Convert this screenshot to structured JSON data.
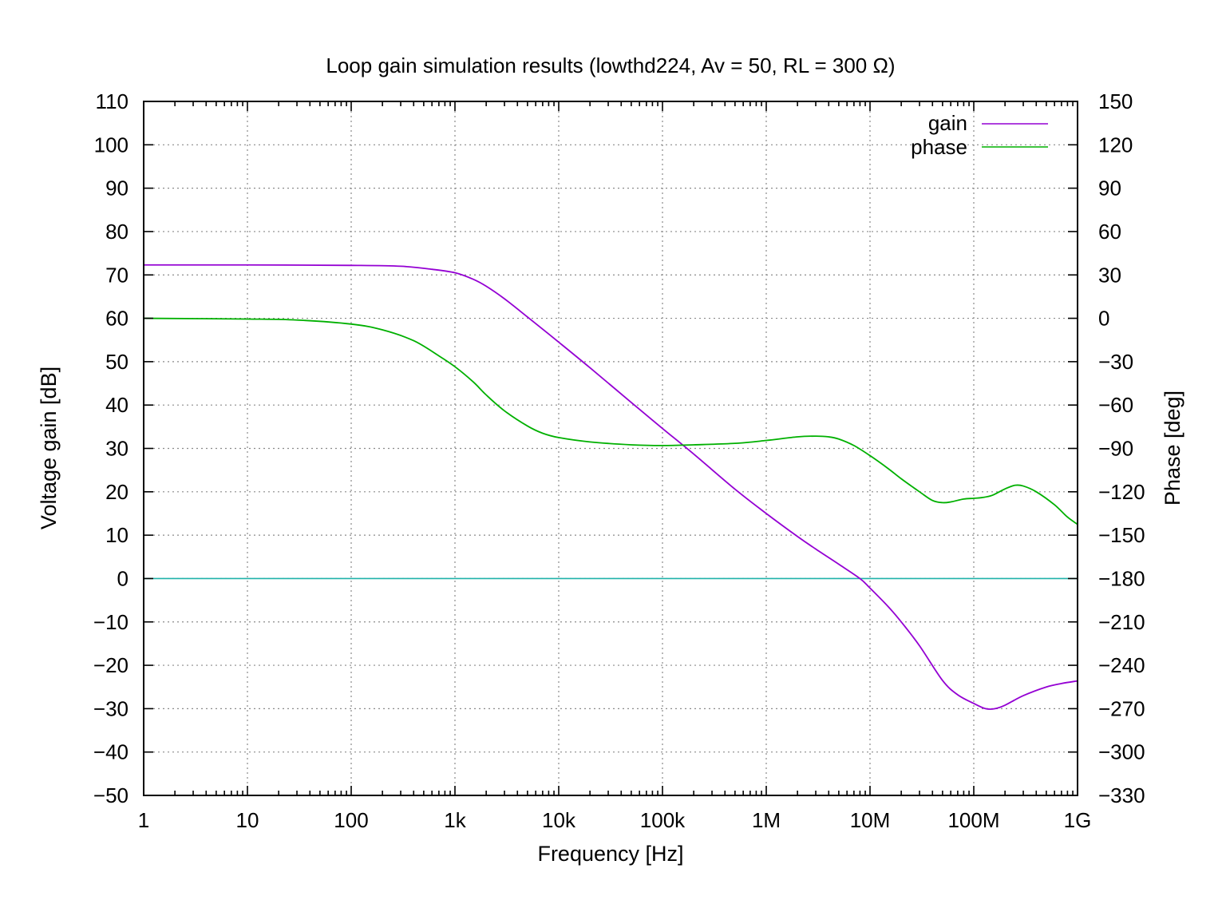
{
  "chart_data": {
    "type": "line",
    "title": "Loop gain simulation results (lowthd224, Av = 50, RL = 300 Ω)",
    "xlabel": "Frequency [Hz]",
    "ylabel": "Voltage gain [dB]",
    "y2label": "Phase [deg]",
    "xscale": "log",
    "xlim": [
      1,
      1000000000
    ],
    "ylim": [
      -50,
      110
    ],
    "y2lim": [
      -330,
      150
    ],
    "grid": true,
    "legend_position": "top-right",
    "x_tick_labels": [
      "1",
      "10",
      "100",
      "1k",
      "10k",
      "100k",
      "1M",
      "10M",
      "100M",
      "1G"
    ],
    "y_tick_labels": [
      "110",
      "100",
      "90",
      "80",
      "70",
      "60",
      "50",
      "40",
      "30",
      "20",
      "10",
      "0",
      "−10",
      "−20",
      "−30",
      "−40",
      "−50"
    ],
    "y2_tick_labels": [
      "150",
      "120",
      "90",
      "60",
      "30",
      "0",
      "−30",
      "−60",
      "−90",
      "−120",
      "−150",
      "−180",
      "−210",
      "−240",
      "−270",
      "−300",
      "−330"
    ],
    "reference_line": {
      "y": 0,
      "color": "#20b2aa"
    },
    "series": [
      {
        "name": "gain",
        "axis": "y",
        "color": "#9400d3",
        "x": [
          1,
          10,
          100,
          300,
          600,
          1000,
          1500,
          2000,
          3000,
          5000,
          10000,
          20000,
          50000,
          100000,
          200000,
          500000,
          1000000,
          2000000,
          3000000,
          5000000,
          8000000,
          10000000,
          15000000,
          20000000,
          30000000,
          50000000,
          70000000,
          100000000,
          130000000,
          160000000,
          200000000,
          300000000,
          500000000,
          700000000,
          1000000000
        ],
        "values": [
          72.3,
          72.3,
          72.2,
          72.0,
          71.3,
          70.5,
          69.0,
          67.4,
          64.5,
          60.3,
          54.5,
          48.6,
          40.6,
          34.6,
          28.7,
          20.6,
          15.0,
          9.7,
          6.8,
          3.3,
          0.0,
          -2.2,
          -6.5,
          -10.0,
          -15.5,
          -23.5,
          -26.8,
          -28.8,
          -30.0,
          -30.0,
          -29.2,
          -27.0,
          -25.0,
          -24.2,
          -23.6
        ]
      },
      {
        "name": "phase",
        "axis": "y2",
        "color": "#00b000",
        "x": [
          1,
          10,
          30,
          100,
          200,
          400,
          700,
          1000,
          1500,
          2000,
          3000,
          5000,
          7000,
          10000,
          20000,
          50000,
          100000,
          200000,
          500000,
          1000000,
          2000000,
          3000000,
          4000000,
          5000000,
          7000000,
          10000000,
          15000000,
          20000000,
          30000000,
          40000000,
          50000000,
          60000000,
          80000000,
          100000000,
          120000000,
          150000000,
          200000000,
          250000000,
          300000000,
          400000000,
          600000000,
          800000000,
          1000000000
        ],
        "values": [
          0.0,
          -0.5,
          -1.2,
          -4.0,
          -8.0,
          -15.5,
          -26.0,
          -33.5,
          -44.0,
          -53.0,
          -64.0,
          -74.5,
          -79.5,
          -82.5,
          -85.5,
          -87.5,
          -88.0,
          -87.5,
          -86.5,
          -84.5,
          -82.0,
          -81.5,
          -82.0,
          -83.5,
          -88.0,
          -95.0,
          -104.0,
          -111.0,
          -120.0,
          -126.0,
          -127.5,
          -127.0,
          -125.0,
          -124.5,
          -124.0,
          -122.5,
          -118.0,
          -115.5,
          -116.0,
          -120.0,
          -129.0,
          -137.5,
          -142.5
        ]
      }
    ]
  }
}
